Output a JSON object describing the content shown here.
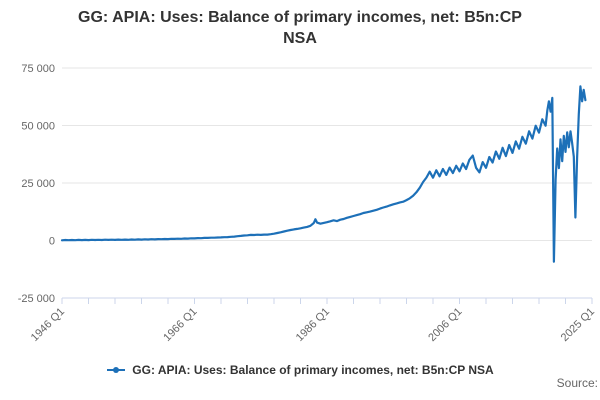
{
  "title": {
    "line1": "GG: APIA: Uses: Balance of primary incomes, net: B5n:CP",
    "line2": "NSA",
    "full": "GG: APIA: Uses: Balance of primary incomes, net: B5n:CP NSA"
  },
  "legend": {
    "label": "GG: APIA: Uses: Balance of primary incomes, net: B5n:CP NSA"
  },
  "source_label": "Source:",
  "colors": {
    "line": "#1d70b8",
    "grid": "#e6e6e6",
    "axis": "#ccd6eb",
    "tick_label": "#666666",
    "title": "#333333"
  },
  "chart_data": {
    "type": "line",
    "title": "GG: APIA: Uses: Balance of primary incomes, net: B5n:CP NSA",
    "xlabel": "",
    "ylabel": "",
    "x_unit": "quarters since 1946 Q1",
    "x_range_labels": [
      "1946 Q1",
      "2025 Q1"
    ],
    "xlim_quarters": [
      0,
      320
    ],
    "ylim": [
      -25000,
      75000
    ],
    "grid": "horizontal",
    "legend_position": "bottom",
    "y_ticks": [
      {
        "v": -25000,
        "label": "-25 000"
      },
      {
        "v": 0,
        "label": "0"
      },
      {
        "v": 25000,
        "label": "25 000"
      },
      {
        "v": 50000,
        "label": "50 000"
      },
      {
        "v": 75000,
        "label": "75 000"
      }
    ],
    "x_ticks": {
      "tick_count": 21,
      "quarters_per_tick": 16,
      "label_every_n_ticks": 5,
      "labels": [
        "1946 Q1",
        "1966 Q1",
        "1986 Q1",
        "2006 Q1",
        "2025 Q1"
      ]
    },
    "series": [
      {
        "name": "GG: APIA: Uses: Balance of primary incomes, net: B5n:CP NSA",
        "color": "#1d70b8",
        "points": [
          [
            0,
            100
          ],
          [
            2,
            210
          ],
          [
            4,
            120
          ],
          [
            6,
            230
          ],
          [
            8,
            140
          ],
          [
            10,
            250
          ],
          [
            12,
            160
          ],
          [
            14,
            270
          ],
          [
            16,
            180
          ],
          [
            18,
            290
          ],
          [
            20,
            200
          ],
          [
            22,
            310
          ],
          [
            24,
            220
          ],
          [
            26,
            330
          ],
          [
            28,
            240
          ],
          [
            30,
            350
          ],
          [
            32,
            265
          ],
          [
            34,
            375
          ],
          [
            36,
            295
          ],
          [
            38,
            405
          ],
          [
            40,
            325
          ],
          [
            42,
            435
          ],
          [
            44,
            360
          ],
          [
            46,
            470
          ],
          [
            48,
            400
          ],
          [
            50,
            510
          ],
          [
            52,
            445
          ],
          [
            54,
            555
          ],
          [
            56,
            495
          ],
          [
            58,
            605
          ],
          [
            60,
            550
          ],
          [
            62,
            660
          ],
          [
            64,
            615
          ],
          [
            66,
            725
          ],
          [
            68,
            685
          ],
          [
            70,
            795
          ],
          [
            72,
            760
          ],
          [
            74,
            870
          ],
          [
            76,
            840
          ],
          [
            78,
            950
          ],
          [
            80,
            925
          ],
          [
            82,
            1035
          ],
          [
            84,
            1015
          ],
          [
            86,
            1125
          ],
          [
            88,
            1110
          ],
          [
            90,
            1220
          ],
          [
            92,
            1210
          ],
          [
            94,
            1320
          ],
          [
            96,
            1330
          ],
          [
            98,
            1440
          ],
          [
            100,
            1480
          ],
          [
            102,
            1600
          ],
          [
            104,
            1700
          ],
          [
            106,
            1850
          ],
          [
            108,
            2000
          ],
          [
            110,
            2180
          ],
          [
            112,
            2280
          ],
          [
            114,
            2430
          ],
          [
            116,
            2370
          ],
          [
            118,
            2520
          ],
          [
            120,
            2420
          ],
          [
            122,
            2570
          ],
          [
            124,
            2570
          ],
          [
            126,
            2760
          ],
          [
            128,
            2960
          ],
          [
            130,
            3260
          ],
          [
            132,
            3560
          ],
          [
            134,
            3910
          ],
          [
            136,
            4260
          ],
          [
            138,
            4560
          ],
          [
            140,
            4810
          ],
          [
            142,
            5060
          ],
          [
            144,
            5310
          ],
          [
            146,
            5610
          ],
          [
            148,
            5910
          ],
          [
            150,
            6410
          ],
          [
            152,
            7600
          ],
          [
            153,
            9200
          ],
          [
            154,
            7800
          ],
          [
            156,
            7300
          ],
          [
            158,
            7650
          ],
          [
            160,
            7950
          ],
          [
            162,
            8350
          ],
          [
            164,
            8800
          ],
          [
            166,
            8450
          ],
          [
            168,
            9050
          ],
          [
            170,
            9350
          ],
          [
            172,
            9850
          ],
          [
            174,
            10250
          ],
          [
            176,
            10650
          ],
          [
            178,
            11050
          ],
          [
            180,
            11450
          ],
          [
            182,
            11950
          ],
          [
            184,
            12250
          ],
          [
            186,
            12550
          ],
          [
            188,
            12950
          ],
          [
            190,
            13350
          ],
          [
            192,
            13850
          ],
          [
            194,
            14350
          ],
          [
            196,
            14750
          ],
          [
            198,
            15250
          ],
          [
            200,
            15750
          ],
          [
            202,
            16150
          ],
          [
            204,
            16550
          ],
          [
            206,
            16850
          ],
          [
            208,
            17550
          ],
          [
            210,
            18350
          ],
          [
            212,
            19450
          ],
          [
            214,
            20950
          ],
          [
            216,
            22950
          ],
          [
            218,
            25450
          ],
          [
            220,
            27350
          ],
          [
            222,
            29900
          ],
          [
            224,
            27300
          ],
          [
            226,
            30500
          ],
          [
            228,
            27900
          ],
          [
            230,
            31100
          ],
          [
            232,
            28500
          ],
          [
            234,
            31700
          ],
          [
            236,
            29300
          ],
          [
            238,
            32500
          ],
          [
            240,
            30100
          ],
          [
            242,
            33500
          ],
          [
            244,
            31100
          ],
          [
            246,
            35100
          ],
          [
            248,
            36900
          ],
          [
            250,
            31600
          ],
          [
            252,
            29600
          ],
          [
            254,
            34100
          ],
          [
            256,
            31600
          ],
          [
            258,
            36300
          ],
          [
            260,
            33900
          ],
          [
            262,
            38700
          ],
          [
            264,
            35500
          ],
          [
            266,
            40300
          ],
          [
            268,
            36700
          ],
          [
            270,
            41500
          ],
          [
            272,
            38100
          ],
          [
            274,
            43100
          ],
          [
            276,
            39900
          ],
          [
            278,
            45100
          ],
          [
            280,
            42100
          ],
          [
            282,
            47500
          ],
          [
            284,
            44300
          ],
          [
            286,
            49900
          ],
          [
            288,
            46900
          ],
          [
            290,
            52700
          ],
          [
            292,
            49900
          ],
          [
            293,
            56500
          ],
          [
            294,
            60500
          ],
          [
            295,
            56000
          ],
          [
            296,
            62000
          ],
          [
            297,
            -9200
          ],
          [
            298,
            26500
          ],
          [
            299,
            40000
          ],
          [
            300,
            31500
          ],
          [
            301,
            44000
          ],
          [
            302,
            34500
          ],
          [
            303,
            45500
          ],
          [
            304,
            38500
          ],
          [
            305,
            47000
          ],
          [
            306,
            40500
          ],
          [
            307,
            47500
          ],
          [
            308,
            42500
          ],
          [
            309,
            36500
          ],
          [
            310,
            10000
          ],
          [
            311,
            36000
          ],
          [
            312,
            55000
          ],
          [
            313,
            67000
          ],
          [
            314,
            60500
          ],
          [
            315,
            65500
          ],
          [
            316,
            61000
          ]
        ]
      }
    ]
  }
}
